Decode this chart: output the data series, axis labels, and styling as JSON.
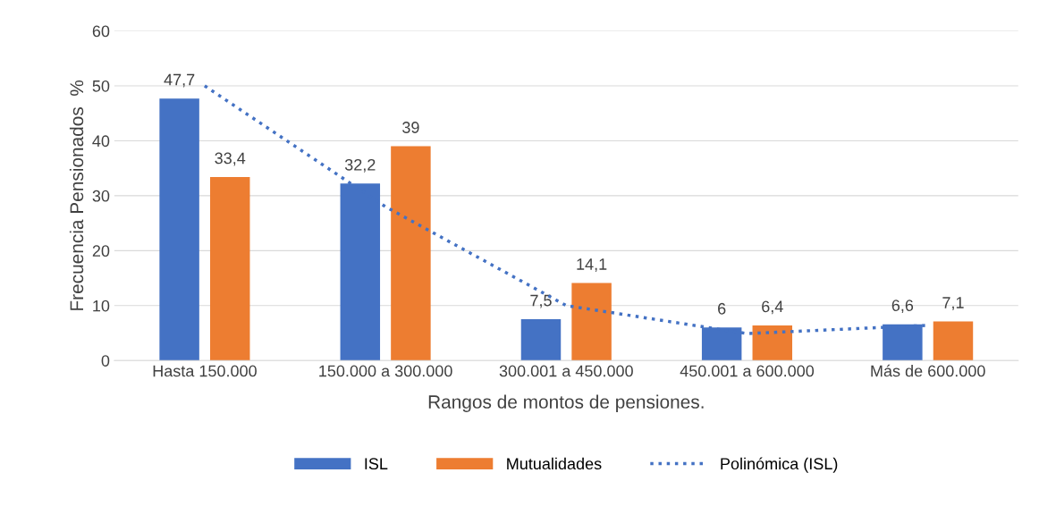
{
  "chart_data": {
    "type": "bar",
    "xlabel": "Rangos de montos de pensiones.",
    "ylabel": "Frecuencia Pensionados  %",
    "categories": [
      "Hasta 150.000",
      "150.000 a 300.000",
      "300.001 a 450.000",
      "450.001 a 600.000",
      "Más de 600.000"
    ],
    "series": [
      {
        "name": "ISL",
        "color": "#4472c4",
        "values": [
          47.7,
          32.2,
          7.5,
          6,
          6.6
        ],
        "value_labels": [
          "47,7",
          "32,2",
          "7,5",
          "6",
          "6,6"
        ]
      },
      {
        "name": "Mutualidades",
        "color": "#ed7d31",
        "values": [
          33.4,
          39,
          14.1,
          6.4,
          7.1
        ],
        "value_labels": [
          "33,4",
          "39",
          "14,1",
          "6,4",
          "7,1"
        ]
      },
      {
        "name": "Polinómica (ISL)",
        "type": "line",
        "line_style": "dotted",
        "color": "#4472c4",
        "x": [
          "Hasta 150.000",
          "150.000 a 300.000",
          "300.001 a 450.000",
          "450.001 a 600.000",
          "Más de 600.000"
        ],
        "values": [
          50,
          28,
          10,
          4.9,
          6.4
        ]
      }
    ],
    "ylim": [
      0,
      60
    ],
    "yticks": [
      0,
      10,
      20,
      30,
      40,
      50,
      60
    ],
    "grid": "y",
    "legend": "bottom"
  }
}
